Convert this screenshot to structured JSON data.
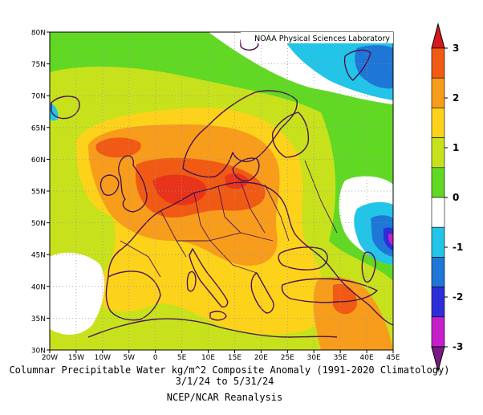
{
  "map": {
    "credit": "NOAA Physical Sciences Laboratory",
    "lat_labels": [
      "80N",
      "75N",
      "70N",
      "65N",
      "60N",
      "55N",
      "50N",
      "45N",
      "40N",
      "35N",
      "30N"
    ],
    "lon_labels": [
      "20W",
      "15W",
      "10W",
      "5W",
      "0",
      "5E",
      "10E",
      "15E",
      "20E",
      "25E",
      "30E",
      "35E",
      "40E",
      "45E"
    ],
    "extent": {
      "lon": [
        -20,
        45
      ],
      "lat": [
        30,
        80
      ]
    },
    "variable": "Columnar Precipitable Water",
    "units": "kg/m^2",
    "grid_style": "dotted"
  },
  "colorbar": {
    "tick_labels": [
      "3",
      "2",
      "1",
      "0",
      "-1",
      "-2",
      "-3"
    ],
    "colors": [
      "#d7191c",
      "#f05a14",
      "#f89c1c",
      "#fdd21a",
      "#c7e21c",
      "#61d823",
      "#ffffff",
      "#22c4e8",
      "#1e76d6",
      "#2e2ed8",
      "#c61fc9",
      "#7a1a86"
    ]
  },
  "captions": {
    "line1": "Columnar Precipitable Water kg/m^2 Composite Anomaly (1991-2020 Climatology)",
    "line2": "3/1/24  to 5/31/24",
    "line3": "NCEP/NCAR Reanalysis"
  }
}
